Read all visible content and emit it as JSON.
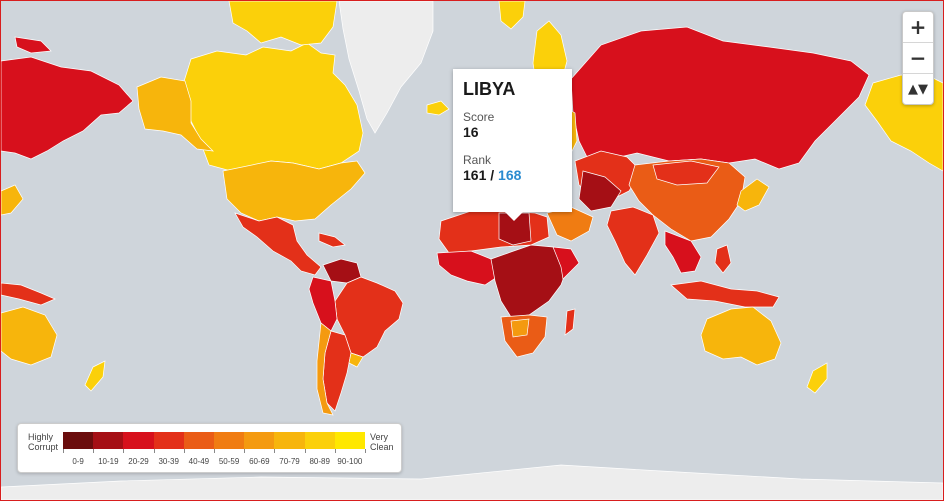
{
  "map": {
    "tooltip": {
      "country": "LIBYA",
      "score_label": "Score",
      "score": "16",
      "rank_label": "Rank",
      "rank": "161",
      "rank_separator": " / ",
      "rank_total": "168"
    },
    "legend": {
      "low_label_line1": "Highly",
      "low_label_line2": "Corrupt",
      "high_label_line1": "Very",
      "high_label_line2": "Clean",
      "ranges": [
        "0-9",
        "10-19",
        "20-29",
        "30-39",
        "40-49",
        "50-59",
        "60-69",
        "70-79",
        "80-89",
        "90-100"
      ],
      "colors": [
        "#6b0d0d",
        "#a50f15",
        "#d7101c",
        "#e33019",
        "#ea5c16",
        "#f07c12",
        "#f49a10",
        "#f7b50c",
        "#fbd00a",
        "#ffe800"
      ]
    },
    "zoom": {
      "in_label": "+",
      "out_label": "−",
      "compass_label": "▲▼"
    },
    "colors": {
      "ocean": "#cfd5db",
      "no_data": "#eeeeee",
      "border": "#d81e1e"
    }
  }
}
